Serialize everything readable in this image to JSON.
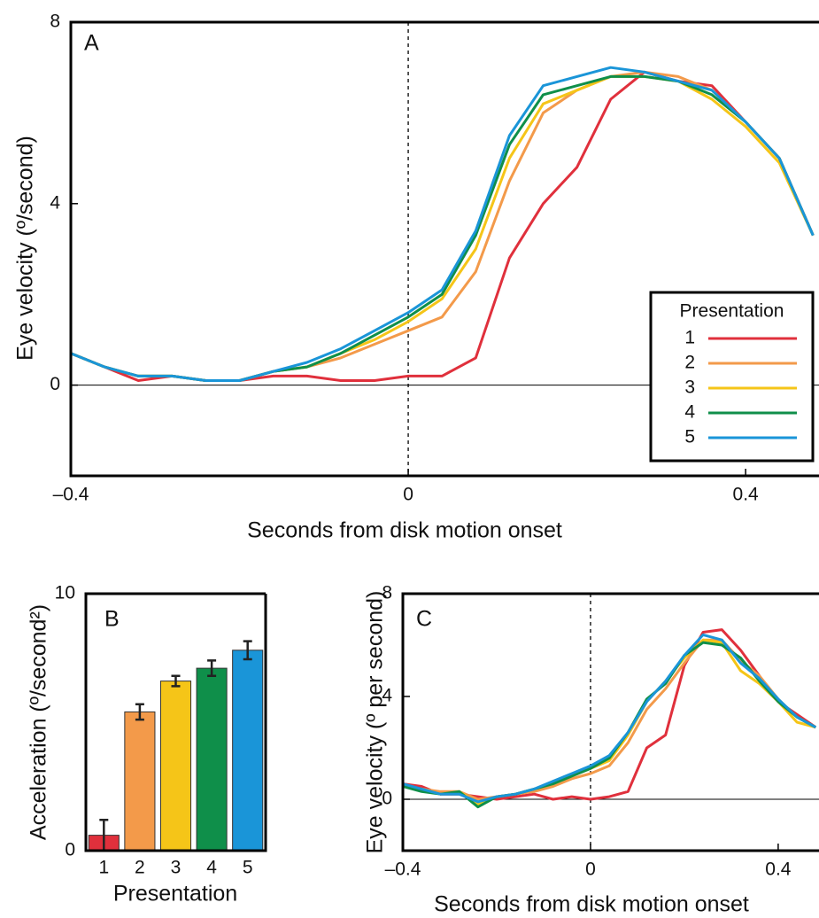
{
  "chart_data": [
    {
      "type": "line",
      "annotation": "A",
      "xlabel": "Seconds from disk motion onset",
      "ylabel": "Eye velocity (º/second)",
      "x": [
        -0.4,
        -0.36,
        -0.32,
        -0.28,
        -0.24,
        -0.2,
        -0.16,
        -0.12,
        -0.08,
        -0.04,
        0,
        0.04,
        0.08,
        0.12,
        0.16,
        0.2,
        0.24,
        0.28,
        0.32,
        0.36,
        0.4,
        0.44,
        0.48
      ],
      "series": [
        {
          "name": "1",
          "color": "#e0303c",
          "values": [
            0.7,
            0.4,
            0.1,
            0.2,
            0.1,
            0.1,
            0.2,
            0.2,
            0.1,
            0.1,
            0.2,
            0.2,
            0.6,
            2.8,
            4.0,
            4.8,
            6.3,
            6.9,
            6.7,
            6.6,
            5.8,
            5.0,
            3.3
          ]
        },
        {
          "name": "2",
          "color": "#f39a4a",
          "values": [
            0.7,
            0.4,
            0.2,
            0.2,
            0.1,
            0.1,
            0.3,
            0.4,
            0.6,
            0.9,
            1.2,
            1.5,
            2.5,
            4.5,
            6.0,
            6.5,
            6.8,
            6.9,
            6.8,
            6.5,
            5.8,
            5.0,
            3.3
          ]
        },
        {
          "name": "3",
          "color": "#f5c518",
          "values": [
            0.7,
            0.4,
            0.2,
            0.2,
            0.1,
            0.1,
            0.3,
            0.4,
            0.7,
            1.0,
            1.4,
            1.9,
            3.0,
            5.0,
            6.2,
            6.5,
            6.8,
            6.8,
            6.7,
            6.3,
            5.7,
            4.9,
            3.3
          ]
        },
        {
          "name": "4",
          "color": "#0f8f4a",
          "values": [
            0.7,
            0.4,
            0.2,
            0.2,
            0.1,
            0.1,
            0.3,
            0.4,
            0.7,
            1.1,
            1.5,
            2.0,
            3.3,
            5.3,
            6.4,
            6.6,
            6.8,
            6.8,
            6.7,
            6.4,
            5.8,
            5.0,
            3.3
          ]
        },
        {
          "name": "5",
          "color": "#1a95d8",
          "values": [
            0.7,
            0.4,
            0.2,
            0.2,
            0.1,
            0.1,
            0.3,
            0.5,
            0.8,
            1.2,
            1.6,
            2.1,
            3.4,
            5.5,
            6.6,
            6.8,
            7.0,
            6.9,
            6.7,
            6.5,
            5.8,
            5.0,
            3.3
          ]
        }
      ],
      "xlim": [
        -0.4,
        0.487
      ],
      "ylim": [
        -2,
        8
      ],
      "xticks": [
        {
          "value": -0.4,
          "label": "–0.4"
        },
        0,
        0.4
      ],
      "yticks": [
        0,
        4,
        8
      ],
      "hline": 0,
      "vline": 0,
      "legend_title": "Presentation",
      "legend": "lower right",
      "grid": false
    },
    {
      "type": "bar",
      "annotation": "B",
      "xlabel": "Presentation",
      "ylabel": "Acceleration (º/second²)",
      "categories": [
        "1",
        "2",
        "3",
        "4",
        "5"
      ],
      "values": [
        0.6,
        5.4,
        6.6,
        7.1,
        7.8
      ],
      "errors": [
        0.6,
        0.3,
        0.2,
        0.3,
        0.35
      ],
      "colors": [
        "#e0303c",
        "#f39a4a",
        "#f5c518",
        "#0f8f4a",
        "#1a95d8"
      ],
      "ylim": [
        0,
        10
      ],
      "yticks": [
        0,
        10
      ],
      "grid": false
    },
    {
      "type": "line",
      "annotation": "C",
      "xlabel": "Seconds from disk motion onset",
      "ylabel": "Eye velocity (º per second)",
      "x": [
        -0.4,
        -0.36,
        -0.32,
        -0.28,
        -0.24,
        -0.2,
        -0.16,
        -0.12,
        -0.08,
        -0.04,
        0,
        0.04,
        0.08,
        0.12,
        0.16,
        0.2,
        0.24,
        0.28,
        0.32,
        0.36,
        0.4,
        0.44,
        0.48
      ],
      "series": [
        {
          "color": "#e0303c",
          "values": [
            0.6,
            0.5,
            0.2,
            0.2,
            0.1,
            0.0,
            0.1,
            0.2,
            0.0,
            0.1,
            0.0,
            0.1,
            0.3,
            2.0,
            2.5,
            5.2,
            6.5,
            6.6,
            5.8,
            4.8,
            3.8,
            3.3,
            2.8
          ]
        },
        {
          "color": "#f39a4a",
          "values": [
            0.5,
            0.4,
            0.3,
            0.3,
            0.0,
            0.1,
            0.2,
            0.3,
            0.5,
            0.8,
            1.0,
            1.3,
            2.2,
            3.5,
            4.3,
            5.3,
            6.2,
            6.2,
            5.4,
            4.8,
            3.9,
            3.2,
            2.8
          ]
        },
        {
          "color": "#f5c518",
          "values": [
            0.5,
            0.4,
            0.2,
            0.3,
            -0.2,
            0.1,
            0.2,
            0.4,
            0.6,
            0.9,
            1.2,
            1.5,
            2.5,
            3.8,
            4.6,
            5.5,
            6.2,
            6.1,
            5.0,
            4.5,
            3.8,
            3.0,
            2.8
          ]
        },
        {
          "color": "#0f8f4a",
          "values": [
            0.5,
            0.3,
            0.2,
            0.3,
            -0.3,
            0.1,
            0.2,
            0.4,
            0.6,
            0.9,
            1.2,
            1.6,
            2.6,
            3.9,
            4.5,
            5.6,
            6.1,
            6.0,
            5.5,
            4.6,
            3.8,
            3.2,
            2.8
          ]
        },
        {
          "color": "#1a95d8",
          "values": [
            0.6,
            0.4,
            0.2,
            0.2,
            -0.1,
            0.1,
            0.2,
            0.4,
            0.7,
            1.0,
            1.3,
            1.7,
            2.6,
            3.8,
            4.6,
            5.6,
            6.4,
            6.2,
            5.3,
            4.7,
            3.9,
            3.2,
            2.8
          ]
        }
      ],
      "xlim": [
        -0.4,
        0.487
      ],
      "ylim": [
        -2,
        8
      ],
      "xticks": [
        {
          "value": -0.4,
          "label": "–0.4"
        },
        0,
        0.4
      ],
      "yticks": [
        0,
        4,
        8
      ],
      "hline": 0,
      "vline": 0,
      "grid": false
    }
  ]
}
